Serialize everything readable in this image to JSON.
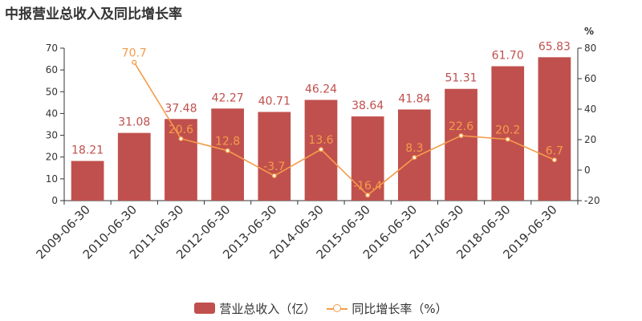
{
  "title": "中报营业总收入及同比增长率",
  "colors": {
    "bar": "#c0504d",
    "bar_label": "#c0504d",
    "line": "#f59c4a",
    "axis": "#333333",
    "grid": "#e6e6e6"
  },
  "legend": {
    "bar_label": "营业总收入（亿）",
    "line_label": "同比增长率（%）"
  },
  "chart_data": {
    "type": "bar",
    "categories": [
      "2009-06-30",
      "2010-06-30",
      "2011-06-30",
      "2012-06-30",
      "2013-06-30",
      "2014-06-30",
      "2015-06-30",
      "2016-06-30",
      "2017-06-30",
      "2018-06-30",
      "2019-06-30"
    ],
    "series": [
      {
        "name": "营业总收入（亿）",
        "type": "bar",
        "axis": "left",
        "values": [
          18.21,
          31.08,
          37.48,
          42.27,
          40.71,
          46.24,
          38.64,
          41.84,
          51.31,
          61.7,
          65.83
        ],
        "labels": [
          "18.21",
          "31.08",
          "37.48",
          "42.27",
          "40.71",
          "46.24",
          "38.64",
          "41.84",
          "51.31",
          "61.70",
          "65.83"
        ]
      },
      {
        "name": "同比增长率（%）",
        "type": "line",
        "axis": "right",
        "values": [
          null,
          70.7,
          20.6,
          12.8,
          -3.7,
          13.6,
          -16.4,
          8.3,
          22.6,
          20.2,
          6.7
        ],
        "labels": [
          "",
          "70.7",
          "20.6",
          "12.8",
          "-3.7",
          "13.6",
          "-16.4",
          "8.3",
          "22.6",
          "20.2",
          "6.7"
        ]
      }
    ],
    "ylim_left": [
      0,
      70
    ],
    "yticks_left": [
      "0",
      "10",
      "20",
      "30",
      "40",
      "50",
      "60",
      "70"
    ],
    "ylim_right": [
      -20,
      80
    ],
    "yticks_right": [
      "-20",
      "0",
      "20",
      "40",
      "60",
      "80"
    ],
    "ylabel_right": "%",
    "xlabel": "",
    "ylabel": "",
    "grid": false,
    "legend_position": "bottom"
  }
}
